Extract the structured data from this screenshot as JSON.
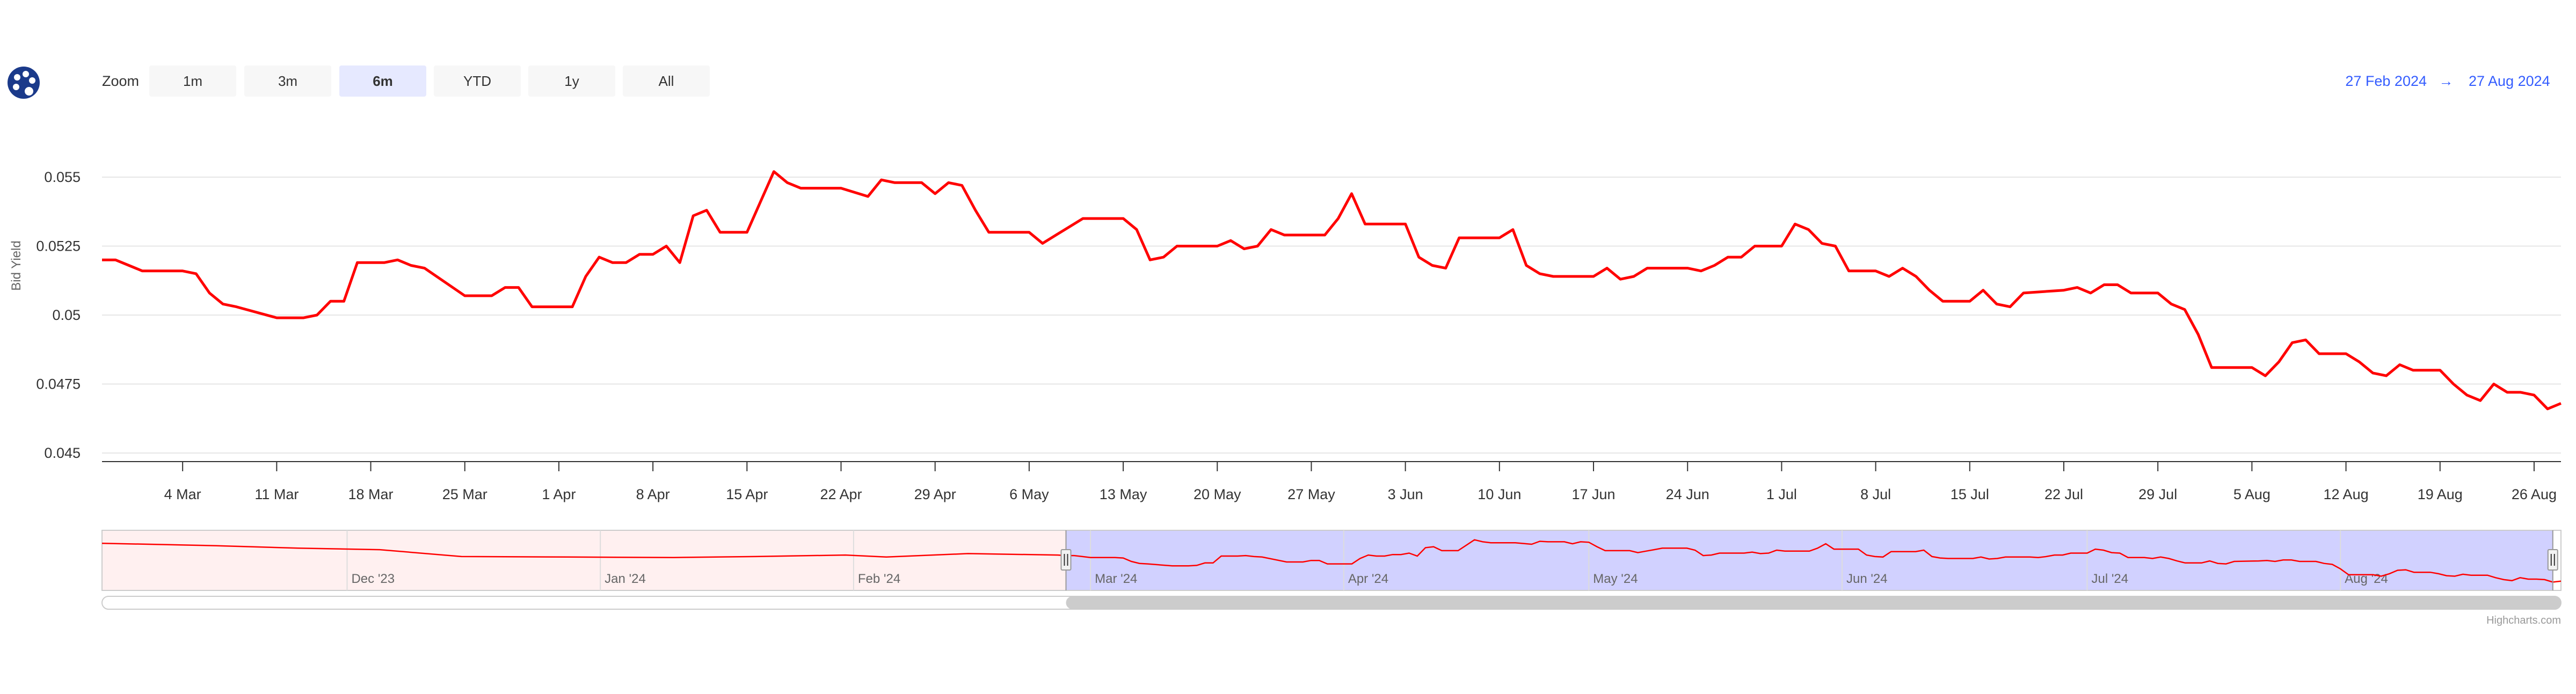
{
  "toolbar": {
    "zoom_label": "Zoom",
    "buttons": [
      {
        "label": "1m",
        "active": false
      },
      {
        "label": "3m",
        "active": false
      },
      {
        "label": "6m",
        "active": true
      },
      {
        "label": "YTD",
        "active": false
      },
      {
        "label": "1y",
        "active": false
      },
      {
        "label": "All",
        "active": false
      }
    ],
    "menu_icon": "palette-icon"
  },
  "range": {
    "from": "27 Feb 2024",
    "arrow": "→",
    "to": "27 Aug 2024"
  },
  "credit": "Highcharts.com",
  "colors": {
    "line": "#ff0000",
    "accent": "#335cff",
    "navigator_mask": "#6666ff",
    "navigator_outside": "#fff0f0"
  },
  "chart_data": {
    "type": "line",
    "ylabel": "Bid Yield",
    "ylim": [
      0.045,
      0.055
    ],
    "yticks": [
      {
        "value": 0.045,
        "label": "0.045"
      },
      {
        "value": 0.0475,
        "label": "0.0475"
      },
      {
        "value": 0.05,
        "label": "0.05"
      },
      {
        "value": 0.0525,
        "label": "0.0525"
      },
      {
        "value": 0.055,
        "label": "0.055"
      }
    ],
    "xlim": [
      "2024-02-27",
      "2024-08-27"
    ],
    "xticks": [
      {
        "date": "2024-03-04",
        "label": "4 Mar"
      },
      {
        "date": "2024-03-11",
        "label": "11 Mar"
      },
      {
        "date": "2024-03-18",
        "label": "18 Mar"
      },
      {
        "date": "2024-03-25",
        "label": "25 Mar"
      },
      {
        "date": "2024-04-01",
        "label": "1 Apr"
      },
      {
        "date": "2024-04-08",
        "label": "8 Apr"
      },
      {
        "date": "2024-04-15",
        "label": "15 Apr"
      },
      {
        "date": "2024-04-22",
        "label": "22 Apr"
      },
      {
        "date": "2024-04-29",
        "label": "29 Apr"
      },
      {
        "date": "2024-05-06",
        "label": "6 May"
      },
      {
        "date": "2024-05-13",
        "label": "13 May"
      },
      {
        "date": "2024-05-20",
        "label": "20 May"
      },
      {
        "date": "2024-05-27",
        "label": "27 May"
      },
      {
        "date": "2024-06-03",
        "label": "3 Jun"
      },
      {
        "date": "2024-06-10",
        "label": "10 Jun"
      },
      {
        "date": "2024-06-17",
        "label": "17 Jun"
      },
      {
        "date": "2024-06-24",
        "label": "24 Jun"
      },
      {
        "date": "2024-07-01",
        "label": "1 Jul"
      },
      {
        "date": "2024-07-08",
        "label": "8 Jul"
      },
      {
        "date": "2024-07-15",
        "label": "15 Jul"
      },
      {
        "date": "2024-07-22",
        "label": "22 Jul"
      },
      {
        "date": "2024-07-29",
        "label": "29 Jul"
      },
      {
        "date": "2024-08-05",
        "label": "5 Aug"
      },
      {
        "date": "2024-08-12",
        "label": "12 Aug"
      },
      {
        "date": "2024-08-19",
        "label": "19 Aug"
      },
      {
        "date": "2024-08-26",
        "label": "26 Aug"
      }
    ],
    "grid": true,
    "legend": "none",
    "series": [
      {
        "points": [
          [
            "2024-02-27",
            0.052
          ],
          [
            "2024-02-28",
            0.052
          ],
          [
            "2024-02-29",
            0.0518
          ],
          [
            "2024-03-01",
            0.0516
          ],
          [
            "2024-03-04",
            0.0516
          ],
          [
            "2024-03-05",
            0.0515
          ],
          [
            "2024-03-06",
            0.0508
          ],
          [
            "2024-03-07",
            0.0504
          ],
          [
            "2024-03-08",
            0.0503
          ],
          [
            "2024-03-11",
            0.0499
          ],
          [
            "2024-03-12",
            0.0499
          ],
          [
            "2024-03-13",
            0.0499
          ],
          [
            "2024-03-14",
            0.05
          ],
          [
            "2024-03-15",
            0.0505
          ],
          [
            "2024-03-16",
            0.0505
          ],
          [
            "2024-03-17",
            0.0519
          ],
          [
            "2024-03-18",
            0.0519
          ],
          [
            "2024-03-19",
            0.0519
          ],
          [
            "2024-03-20",
            0.052
          ],
          [
            "2024-03-21",
            0.0518
          ],
          [
            "2024-03-22",
            0.0517
          ],
          [
            "2024-03-25",
            0.0507
          ],
          [
            "2024-03-26",
            0.0507
          ],
          [
            "2024-03-27",
            0.0507
          ],
          [
            "2024-03-28",
            0.051
          ],
          [
            "2024-03-29",
            0.051
          ],
          [
            "2024-03-30",
            0.0503
          ],
          [
            "2024-03-31",
            0.0503
          ],
          [
            "2024-04-01",
            0.0503
          ],
          [
            "2024-04-02",
            0.0503
          ],
          [
            "2024-04-03",
            0.0514
          ],
          [
            "2024-04-04",
            0.0521
          ],
          [
            "2024-04-05",
            0.0519
          ],
          [
            "2024-04-06",
            0.0519
          ],
          [
            "2024-04-07",
            0.0522
          ],
          [
            "2024-04-08",
            0.0522
          ],
          [
            "2024-04-09",
            0.0525
          ],
          [
            "2024-04-10",
            0.0519
          ],
          [
            "2024-04-11",
            0.0536
          ],
          [
            "2024-04-12",
            0.0538
          ],
          [
            "2024-04-13",
            0.053
          ],
          [
            "2024-04-15",
            0.053
          ],
          [
            "2024-04-16",
            0.0541
          ],
          [
            "2024-04-17",
            0.0552
          ],
          [
            "2024-04-18",
            0.0548
          ],
          [
            "2024-04-19",
            0.0546
          ],
          [
            "2024-04-22",
            0.0546
          ],
          [
            "2024-04-24",
            0.0543
          ],
          [
            "2024-04-25",
            0.0549
          ],
          [
            "2024-04-26",
            0.0548
          ],
          [
            "2024-04-28",
            0.0548
          ],
          [
            "2024-04-29",
            0.0544
          ],
          [
            "2024-04-30",
            0.0548
          ],
          [
            "2024-05-01",
            0.0547
          ],
          [
            "2024-05-02",
            0.0538
          ],
          [
            "2024-05-03",
            0.053
          ],
          [
            "2024-05-06",
            0.053
          ],
          [
            "2024-05-07",
            0.0526
          ],
          [
            "2024-05-08",
            0.0529
          ],
          [
            "2024-05-09",
            0.0532
          ],
          [
            "2024-05-10",
            0.0535
          ],
          [
            "2024-05-13",
            0.0535
          ],
          [
            "2024-05-14",
            0.0531
          ],
          [
            "2024-05-15",
            0.052
          ],
          [
            "2024-05-16",
            0.0521
          ],
          [
            "2024-05-17",
            0.0525
          ],
          [
            "2024-05-20",
            0.0525
          ],
          [
            "2024-05-21",
            0.0527
          ],
          [
            "2024-05-22",
            0.0524
          ],
          [
            "2024-05-23",
            0.0525
          ],
          [
            "2024-05-24",
            0.0531
          ],
          [
            "2024-05-25",
            0.0529
          ],
          [
            "2024-05-27",
            0.0529
          ],
          [
            "2024-05-28",
            0.0529
          ],
          [
            "2024-05-29",
            0.0535
          ],
          [
            "2024-05-30",
            0.0544
          ],
          [
            "2024-05-31",
            0.0533
          ],
          [
            "2024-06-01",
            0.0533
          ],
          [
            "2024-06-03",
            0.0533
          ],
          [
            "2024-06-04",
            0.0521
          ],
          [
            "2024-06-05",
            0.0518
          ],
          [
            "2024-06-06",
            0.0517
          ],
          [
            "2024-06-07",
            0.0528
          ],
          [
            "2024-06-08",
            0.0528
          ],
          [
            "2024-06-10",
            0.0528
          ],
          [
            "2024-06-11",
            0.0531
          ],
          [
            "2024-06-12",
            0.0518
          ],
          [
            "2024-06-13",
            0.0515
          ],
          [
            "2024-06-14",
            0.0514
          ],
          [
            "2024-06-17",
            0.0514
          ],
          [
            "2024-06-18",
            0.0517
          ],
          [
            "2024-06-19",
            0.0513
          ],
          [
            "2024-06-20",
            0.0514
          ],
          [
            "2024-06-21",
            0.0517
          ],
          [
            "2024-06-24",
            0.0517
          ],
          [
            "2024-06-25",
            0.0516
          ],
          [
            "2024-06-26",
            0.0518
          ],
          [
            "2024-06-27",
            0.0521
          ],
          [
            "2024-06-28",
            0.0521
          ],
          [
            "2024-06-29",
            0.0525
          ],
          [
            "2024-06-30",
            0.0525
          ],
          [
            "2024-07-01",
            0.0525
          ],
          [
            "2024-07-02",
            0.0533
          ],
          [
            "2024-07-03",
            0.0531
          ],
          [
            "2024-07-04",
            0.0526
          ],
          [
            "2024-07-05",
            0.0525
          ],
          [
            "2024-07-06",
            0.0516
          ],
          [
            "2024-07-08",
            0.0516
          ],
          [
            "2024-07-09",
            0.0514
          ],
          [
            "2024-07-10",
            0.0517
          ],
          [
            "2024-07-11",
            0.0514
          ],
          [
            "2024-07-12",
            0.0509
          ],
          [
            "2024-07-13",
            0.0505
          ],
          [
            "2024-07-15",
            0.0505
          ],
          [
            "2024-07-16",
            0.0509
          ],
          [
            "2024-07-17",
            0.0504
          ],
          [
            "2024-07-18",
            0.0503
          ],
          [
            "2024-07-19",
            0.0508
          ],
          [
            "2024-07-22",
            0.0509
          ],
          [
            "2024-07-23",
            0.051
          ],
          [
            "2024-07-24",
            0.0508
          ],
          [
            "2024-07-25",
            0.0511
          ],
          [
            "2024-07-26",
            0.0511
          ],
          [
            "2024-07-27",
            0.0508
          ],
          [
            "2024-07-29",
            0.0508
          ],
          [
            "2024-07-30",
            0.0504
          ],
          [
            "2024-07-31",
            0.0502
          ],
          [
            "2024-08-01",
            0.0493
          ],
          [
            "2024-08-02",
            0.0481
          ],
          [
            "2024-08-05",
            0.0481
          ],
          [
            "2024-08-06",
            0.0478
          ],
          [
            "2024-08-07",
            0.0483
          ],
          [
            "2024-08-08",
            0.049
          ],
          [
            "2024-08-09",
            0.0491
          ],
          [
            "2024-08-10",
            0.0486
          ],
          [
            "2024-08-12",
            0.0486
          ],
          [
            "2024-08-13",
            0.0483
          ],
          [
            "2024-08-14",
            0.0479
          ],
          [
            "2024-08-15",
            0.0478
          ],
          [
            "2024-08-16",
            0.0482
          ],
          [
            "2024-08-17",
            0.048
          ],
          [
            "2024-08-19",
            0.048
          ],
          [
            "2024-08-20",
            0.0475
          ],
          [
            "2024-08-21",
            0.0471
          ],
          [
            "2024-08-22",
            0.0469
          ],
          [
            "2024-08-23",
            0.0475
          ],
          [
            "2024-08-24",
            0.0472
          ],
          [
            "2024-08-25",
            0.0472
          ],
          [
            "2024-08-26",
            0.0471
          ],
          [
            "2024-08-27",
            0.0466
          ],
          [
            "2024-08-28",
            0.0468
          ]
        ]
      }
    ],
    "navigator": {
      "labels": [
        "Dec '23",
        "Jan '24",
        "Feb '24",
        "Mar '24",
        "Apr '24",
        "May '24",
        "Jun '24",
        "Jul '24",
        "Aug '24"
      ],
      "selected_from": "2024-02-27",
      "selected_to": "2024-08-27",
      "history": [
        [
          "2023-11-01",
          0.0545
        ],
        [
          "2023-11-15",
          0.054
        ],
        [
          "2023-11-25",
          0.0535
        ],
        [
          "2023-12-05",
          0.0532
        ],
        [
          "2023-12-15",
          0.0518
        ],
        [
          "2023-12-28",
          0.0517
        ],
        [
          "2024-01-10",
          0.0516
        ],
        [
          "2024-01-20",
          0.0518
        ],
        [
          "2024-01-31",
          0.0521
        ],
        [
          "2024-02-05",
          0.0517
        ],
        [
          "2024-02-15",
          0.0524
        ],
        [
          "2024-02-26",
          0.0521
        ]
      ]
    }
  }
}
